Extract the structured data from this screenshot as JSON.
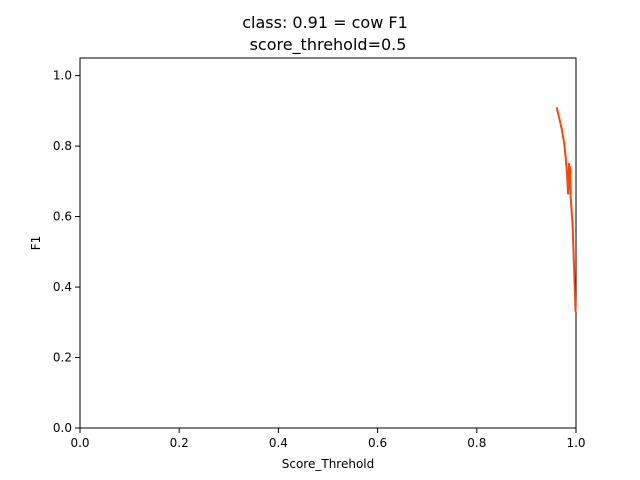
{
  "chart_data": {
    "type": "line",
    "title": "class: 0.91 = cow F1",
    "subtitle": "score_threhold=0.5",
    "xlabel": "Score_Threhold",
    "ylabel": "F1",
    "xlim": [
      0.0,
      1.0
    ],
    "ylim": [
      0.0,
      1.05
    ],
    "xticks": [
      "0.0",
      "0.2",
      "0.4",
      "0.6",
      "0.8",
      "1.0"
    ],
    "yticks": [
      "0.0",
      "0.2",
      "0.4",
      "0.6",
      "0.8",
      "1.0"
    ],
    "grid": false,
    "series": [
      {
        "color": "#ff4500",
        "x": [
          0.961,
          0.966,
          0.971,
          0.976,
          0.979,
          0.982,
          0.984,
          0.986,
          0.987,
          0.988,
          0.989,
          0.99,
          0.991,
          0.993,
          0.995,
          0.997,
          0.999
        ],
        "y": [
          0.91,
          0.88,
          0.85,
          0.81,
          0.77,
          0.72,
          0.665,
          0.75,
          0.68,
          0.74,
          0.66,
          0.64,
          0.62,
          0.58,
          0.5,
          0.42,
          0.33
        ]
      }
    ]
  }
}
